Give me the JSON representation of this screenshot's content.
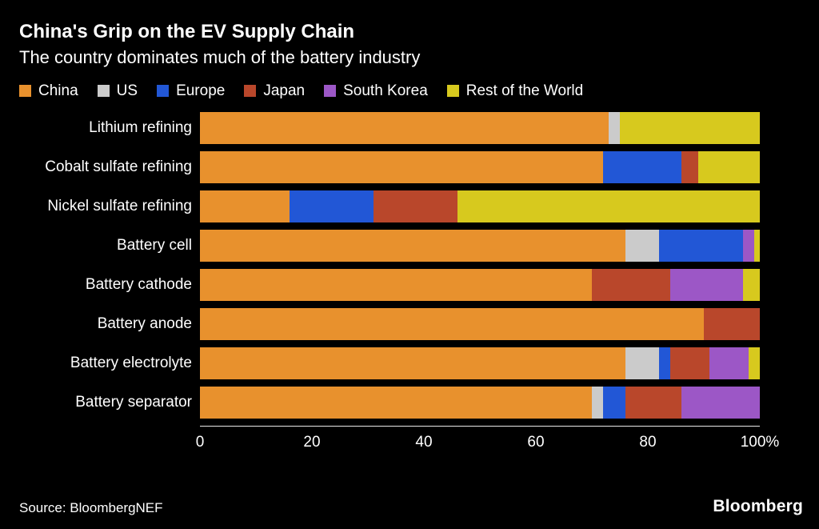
{
  "header": {
    "title": "China's Grip on the EV Supply Chain",
    "subtitle": "The country dominates much of the battery industry"
  },
  "footer": {
    "source": "Source: BloombergNEF",
    "logo": "Bloomberg"
  },
  "chart_data": {
    "type": "bar",
    "orientation": "horizontal",
    "stacked": true,
    "title": "China's Grip on the EV Supply Chain",
    "subtitle": "The country dominates much of the battery industry",
    "unit": "%",
    "xlim": [
      0,
      100
    ],
    "x_ticks": [
      "0",
      "20",
      "40",
      "60",
      "80",
      "100%"
    ],
    "legend_position": "top",
    "grid": false,
    "categories": [
      "Lithium refining",
      "Cobalt sulfate refining",
      "Nickel sulfate refining",
      "Battery cell",
      "Battery cathode",
      "Battery anode",
      "Battery electrolyte",
      "Battery separator"
    ],
    "series": [
      {
        "name": "China",
        "color": "#E8912D",
        "values": [
          73,
          72,
          16,
          76,
          70,
          90,
          76,
          70
        ]
      },
      {
        "name": "US",
        "color": "#CBCBCB",
        "values": [
          2,
          0,
          0,
          6,
          0,
          0,
          6,
          2
        ]
      },
      {
        "name": "Europe",
        "color": "#2257D6",
        "values": [
          0,
          14,
          15,
          15,
          0,
          0,
          2,
          4
        ]
      },
      {
        "name": "Japan",
        "color": "#B9472B",
        "values": [
          0,
          3,
          15,
          0,
          14,
          10,
          7,
          10
        ]
      },
      {
        "name": "South Korea",
        "color": "#9C57C6",
        "values": [
          0,
          0,
          0,
          2,
          13,
          0,
          7,
          14
        ]
      },
      {
        "name": "Rest of the World",
        "color": "#D7C91E",
        "values": [
          25,
          11,
          54,
          1,
          3,
          0,
          2,
          0
        ]
      }
    ]
  }
}
